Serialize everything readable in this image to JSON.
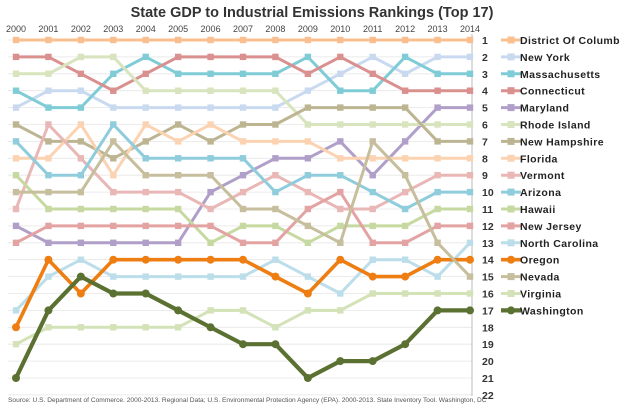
{
  "chart_data": {
    "type": "line",
    "title": "State GDP to Industrial Emissions Rankings (Top 17)",
    "xlabel": "",
    "ylabel": "",
    "x": [
      "2000",
      "2001",
      "2002",
      "2003",
      "2004",
      "2005",
      "2006",
      "2007",
      "2008",
      "2009",
      "2010",
      "2011",
      "2012",
      "2013",
      "2014"
    ],
    "ylim": [
      1,
      22
    ],
    "y_inverted": true,
    "y_ticks": [
      "1",
      "2",
      "3",
      "4",
      "5",
      "6",
      "7",
      "8",
      "9",
      "10",
      "11",
      "12",
      "13",
      "14",
      "15",
      "16",
      "17",
      "18",
      "19",
      "20",
      "21",
      "22"
    ],
    "grid": true,
    "legend_placement": "right",
    "series": [
      {
        "name": "District Of Columbia",
        "color": "#F9BF8F",
        "values": [
          1,
          1,
          1,
          1,
          1,
          1,
          1,
          1,
          1,
          1,
          1,
          1,
          1,
          1,
          1
        ]
      },
      {
        "name": "New York",
        "color": "#C9DAF0",
        "values": [
          5,
          4,
          4,
          5,
          5,
          5,
          5,
          5,
          5,
          4,
          3,
          2,
          3,
          2,
          2
        ]
      },
      {
        "name": "Massachusetts",
        "color": "#7FCCD6",
        "values": [
          4,
          5,
          5,
          3,
          2,
          3,
          3,
          3,
          3,
          2,
          4,
          4,
          2,
          3,
          3
        ]
      },
      {
        "name": "Connecticut",
        "color": "#D9908F",
        "values": [
          2,
          2,
          3,
          4,
          3,
          2,
          2,
          2,
          2,
          3,
          2,
          3,
          4,
          4,
          4
        ]
      },
      {
        "name": "Maryland",
        "color": "#B09FC8",
        "values": [
          12,
          13,
          13,
          13,
          13,
          13,
          10,
          9,
          8,
          8,
          7,
          9,
          7,
          5,
          5
        ]
      },
      {
        "name": "Rhode Island",
        "color": "#D8E4BE",
        "values": [
          3,
          3,
          2,
          2,
          4,
          4,
          4,
          4,
          4,
          6,
          6,
          6,
          6,
          6,
          6
        ]
      },
      {
        "name": "New Hampshire",
        "color": "#BDB592",
        "values": [
          6,
          7,
          7,
          8,
          7,
          6,
          7,
          6,
          6,
          5,
          5,
          5,
          5,
          7,
          7
        ]
      },
      {
        "name": "Florida",
        "color": "#FCD3B2",
        "values": [
          8,
          8,
          6,
          9,
          6,
          7,
          6,
          7,
          7,
          7,
          8,
          8,
          8,
          8,
          8
        ]
      },
      {
        "name": "Vermont",
        "color": "#E8B7B6",
        "values": [
          11,
          6,
          8,
          10,
          10,
          10,
          11,
          10,
          9,
          10,
          11,
          11,
          10,
          9,
          9
        ]
      },
      {
        "name": "Arizona",
        "color": "#8FCCDC",
        "values": [
          7,
          9,
          9,
          6,
          8,
          8,
          8,
          8,
          10,
          9,
          9,
          10,
          11,
          10,
          10
        ]
      },
      {
        "name": "Hawaii",
        "color": "#C6D9A0",
        "values": [
          9,
          11,
          11,
          11,
          11,
          11,
          13,
          12,
          12,
          13,
          12,
          12,
          12,
          11,
          11
        ]
      },
      {
        "name": "New Jersey",
        "color": "#E3A3A3",
        "values": [
          13,
          12,
          12,
          12,
          12,
          12,
          12,
          13,
          13,
          11,
          10,
          13,
          13,
          12,
          12
        ]
      },
      {
        "name": "North Carolina",
        "color": "#BBDEEA",
        "values": [
          17,
          15,
          14,
          15,
          15,
          15,
          15,
          15,
          14,
          15,
          16,
          14,
          14,
          15,
          13
        ]
      },
      {
        "name": "Oregon",
        "color": "#EE7D12",
        "values": [
          18,
          14,
          16,
          14,
          14,
          14,
          14,
          14,
          15,
          16,
          14,
          15,
          15,
          14,
          14
        ]
      },
      {
        "name": "Nevada",
        "color": "#C6BE9C",
        "values": [
          10,
          10,
          10,
          7,
          9,
          9,
          9,
          11,
          11,
          12,
          13,
          7,
          9,
          13,
          15
        ]
      },
      {
        "name": "Virginia",
        "color": "#D3E2B7",
        "values": [
          19,
          18,
          18,
          18,
          18,
          18,
          17,
          17,
          18,
          17,
          17,
          16,
          16,
          16,
          16
        ]
      },
      {
        "name": "Washington",
        "color": "#5B7132",
        "values": [
          21,
          17,
          15,
          16,
          16,
          17,
          18,
          19,
          19,
          21,
          20,
          20,
          19,
          17,
          17
        ]
      }
    ],
    "source": "Source: U.S. Department of Commerce. 2000-2013. Regional Data; U.S. Environmental Protection Agency (EPA). 2000-2013. State Inventory Tool. Washington, DC"
  }
}
